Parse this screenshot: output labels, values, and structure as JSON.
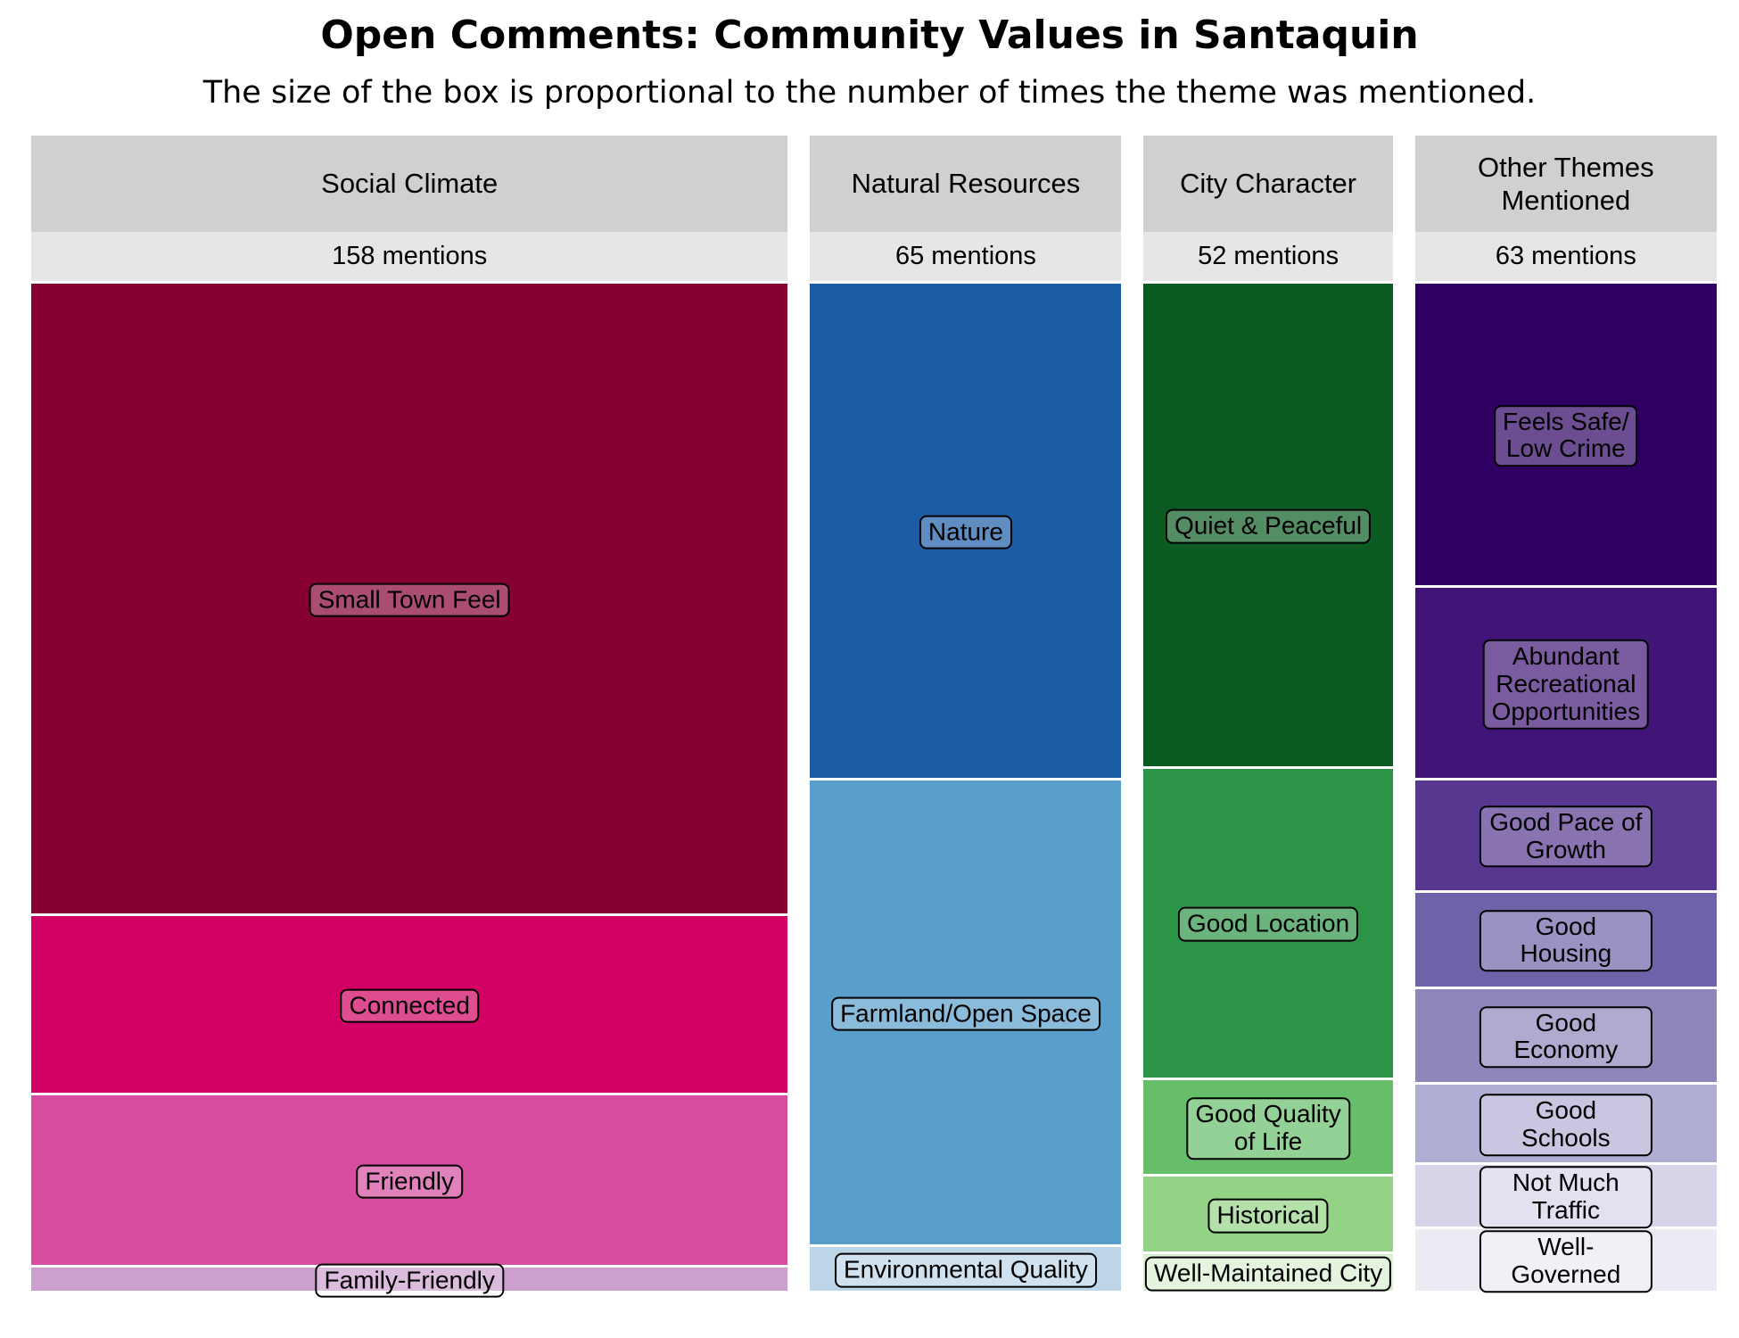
{
  "chart_data": {
    "type": "treemap",
    "title": "Open Comments: Community Values in Santaquin",
    "subtitle": "The size of the box is proportional to the number of times the theme was mentioned.",
    "series": [
      {
        "name": "Social Climate",
        "total": 158,
        "total_label": "158 mentions",
        "categories": [
          "Small Town Feel",
          "Connected",
          "Friendly",
          "Family-Friendly"
        ],
        "values": [
          99,
          28,
          27,
          4
        ],
        "colors": [
          "#860033",
          "#d10062",
          "#d64da0",
          "#cc9fcf"
        ]
      },
      {
        "name": "Natural Resources",
        "total": 65,
        "total_label": "65 mentions",
        "categories": [
          "Nature",
          "Farmland/Open Space",
          "Environmental Quality"
        ],
        "values": [
          32,
          30,
          3
        ],
        "colors": [
          "#1c5ca6",
          "#5a9ecb",
          "#bcd6e8"
        ]
      },
      {
        "name": "City Character",
        "total": 52,
        "total_label": "52 mentions",
        "categories": [
          "Quiet & Peaceful",
          "Good Location",
          "Good Quality\nof Life",
          "Historical",
          "Well-Maintained City"
        ],
        "values": [
          25,
          16,
          5,
          4,
          2
        ],
        "colors": [
          "#0b5b22",
          "#2c9446",
          "#66bd6a",
          "#94d386",
          "#d9f0d2"
        ]
      },
      {
        "name": "Other Themes\nMentioned",
        "total": 63,
        "total_label": "63 mentions",
        "categories": [
          "Feels Safe/\nLow Crime",
          "Abundant\nRecreational\nOpportunities",
          "Good Pace of Growth",
          "Good Housing",
          "Good Economy",
          "Good Schools",
          "Not Much Traffic",
          "Well-Governed"
        ],
        "values": [
          19,
          12,
          7,
          6,
          6,
          5,
          4,
          4
        ],
        "colors": [
          "#2d0062",
          "#411577",
          "#573790",
          "#6e63a8",
          "#8d86bb",
          "#b0aed4",
          "#d5d4e8",
          "#eceaf3"
        ]
      }
    ]
  }
}
